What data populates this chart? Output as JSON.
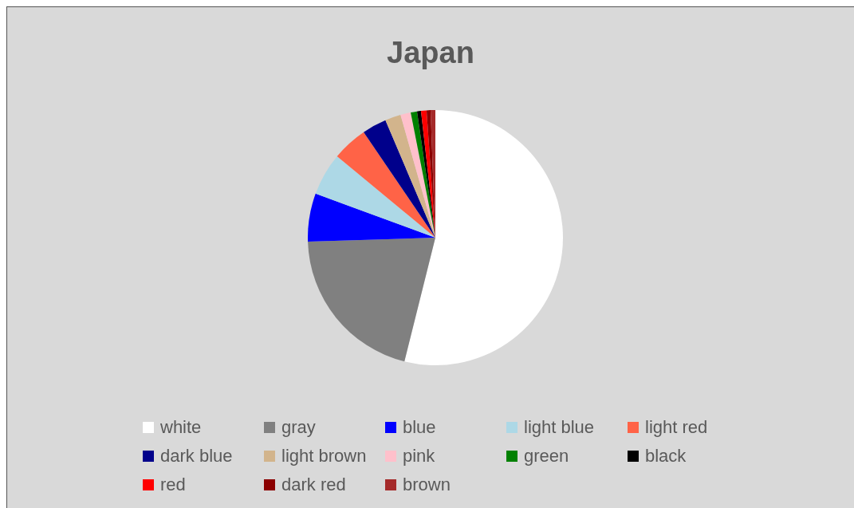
{
  "chart_data": {
    "type": "pie",
    "title": "Japan",
    "categories": [
      "white",
      "gray",
      "blue",
      "light blue",
      "light red",
      "dark blue",
      "light brown",
      "pink",
      "green",
      "black",
      "red",
      "dark red",
      "brown"
    ],
    "values": [
      53.9,
      20.6,
      6.1,
      5.4,
      4.5,
      3.1,
      2.0,
      1.3,
      0.8,
      0.5,
      0.7,
      0.5,
      0.6
    ],
    "colors": [
      "#ffffff",
      "#808080",
      "#0000ff",
      "#add8e6",
      "#ff6347",
      "#00008b",
      "#d2b48c",
      "#ffc0cb",
      "#008000",
      "#000000",
      "#ff0000",
      "#8b0000",
      "#a52a2a"
    ],
    "legend": "bottom"
  }
}
